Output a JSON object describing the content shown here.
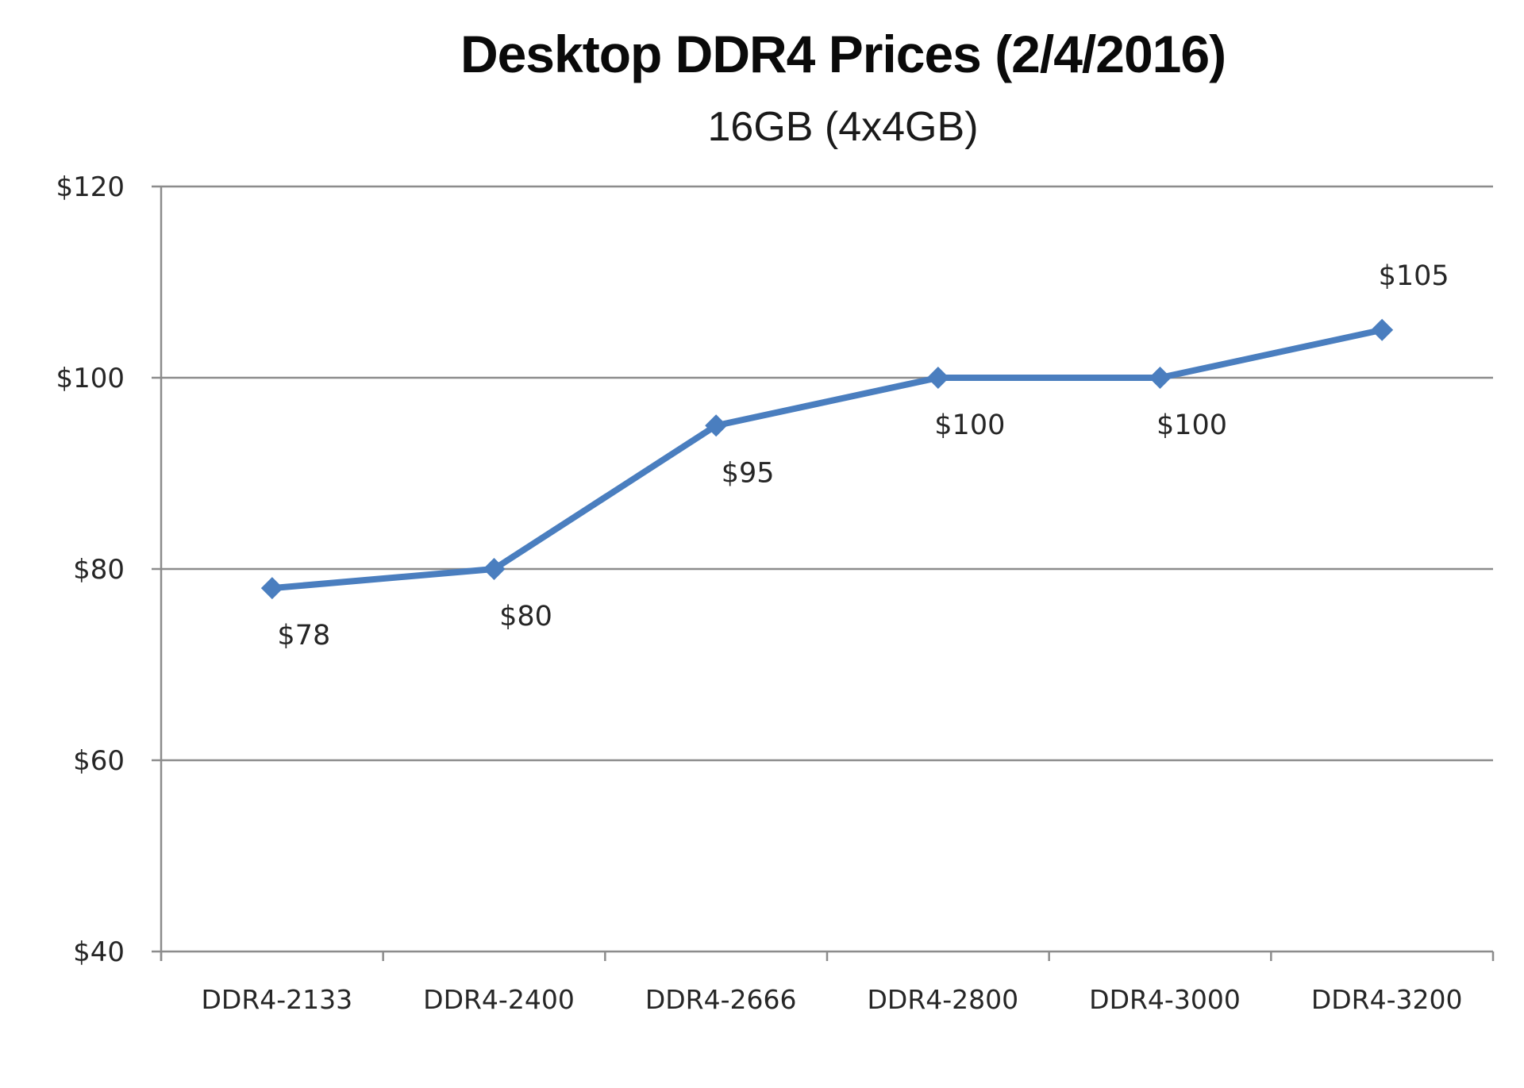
{
  "chart_data": {
    "type": "line",
    "title": "Desktop DDR4 Prices (2/4/2016)",
    "subtitle": "16GB (4x4GB)",
    "xlabel": "",
    "ylabel": "",
    "categories": [
      "DDR4-2133",
      "DDR4-2400",
      "DDR4-2666",
      "DDR4-2800",
      "DDR4-3000",
      "DDR4-3200"
    ],
    "series": [
      {
        "name": "16GB (4x4GB)",
        "values": [
          78,
          80,
          95,
          100,
          100,
          105
        ],
        "data_labels": [
          "$78",
          "$80",
          "$95",
          "$100",
          "$100",
          "$105"
        ],
        "marker": "diamond",
        "color": "#4A7EBF"
      }
    ],
    "ylim": [
      40,
      120
    ],
    "yticks": [
      40,
      60,
      80,
      100,
      120
    ],
    "ytick_labels": [
      "$40",
      "$60",
      "$80",
      "$100",
      "$120"
    ],
    "grid": true,
    "legend": null,
    "colors": {
      "line": "#4A7EBF",
      "grid": "#8c8c8c",
      "axis": "#8c8c8c",
      "text": "#262626"
    }
  }
}
